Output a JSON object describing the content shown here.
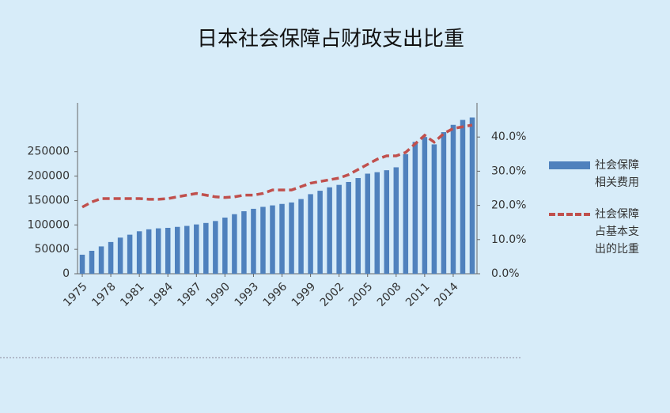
{
  "chart_data": {
    "type": "bar-line",
    "title": "日本社会保障占财政支出比重",
    "categories": [
      "1975",
      null,
      null,
      "1978",
      null,
      null,
      "1981",
      null,
      null,
      "1984",
      null,
      null,
      "1987",
      null,
      null,
      "1990",
      null,
      null,
      "1993",
      null,
      null,
      "1996",
      null,
      null,
      "1999",
      null,
      null,
      "2002",
      null,
      null,
      "2005",
      null,
      null,
      "2008",
      null,
      null,
      "2011",
      null,
      null,
      "2014",
      null,
      null
    ],
    "series": [
      {
        "name": "社会保障相关费用",
        "type": "bar",
        "color": "#4f81bd",
        "values": [
          39000,
          47000,
          56000,
          65000,
          74000,
          80000,
          87000,
          91000,
          93000,
          94000,
          96000,
          98000,
          101000,
          104000,
          108000,
          115000,
          122000,
          128000,
          133000,
          137000,
          140000,
          143000,
          146000,
          153000,
          163000,
          170000,
          177000,
          182000,
          188000,
          196000,
          205000,
          208000,
          212000,
          218000,
          245000,
          270000,
          280000,
          265000,
          290000,
          305000,
          315000,
          320000
        ]
      },
      {
        "name": "社会保障占基本支出的比重",
        "type": "line",
        "axis": "y2",
        "color": "#c0504d",
        "dashed": true,
        "values": [
          19.5,
          21,
          22,
          22,
          22,
          22,
          22,
          21.8,
          21.8,
          22,
          22.5,
          23,
          23.5,
          23,
          22.5,
          22.3,
          22.5,
          23,
          23,
          23.5,
          24.5,
          24.5,
          24.5,
          25.5,
          26.5,
          27,
          27.5,
          28,
          29,
          30.5,
          32,
          33.5,
          34.5,
          34.5,
          35.5,
          38,
          40.5,
          38.5,
          41,
          42.5,
          43,
          43.5
        ]
      }
    ],
    "ylim": [
      0,
      350000
    ],
    "yticks": [
      0,
      50000,
      100000,
      150000,
      200000,
      250000
    ],
    "y2lim": [
      0,
      50
    ],
    "y2ticks": [
      {
        "value": 0,
        "label": "0.0%"
      },
      {
        "value": 10,
        "label": "10.0%"
      },
      {
        "value": 20,
        "label": "20.0%"
      },
      {
        "value": 30,
        "label": "30.0%"
      },
      {
        "value": 40,
        "label": "40.0%"
      }
    ],
    "grid": false
  }
}
